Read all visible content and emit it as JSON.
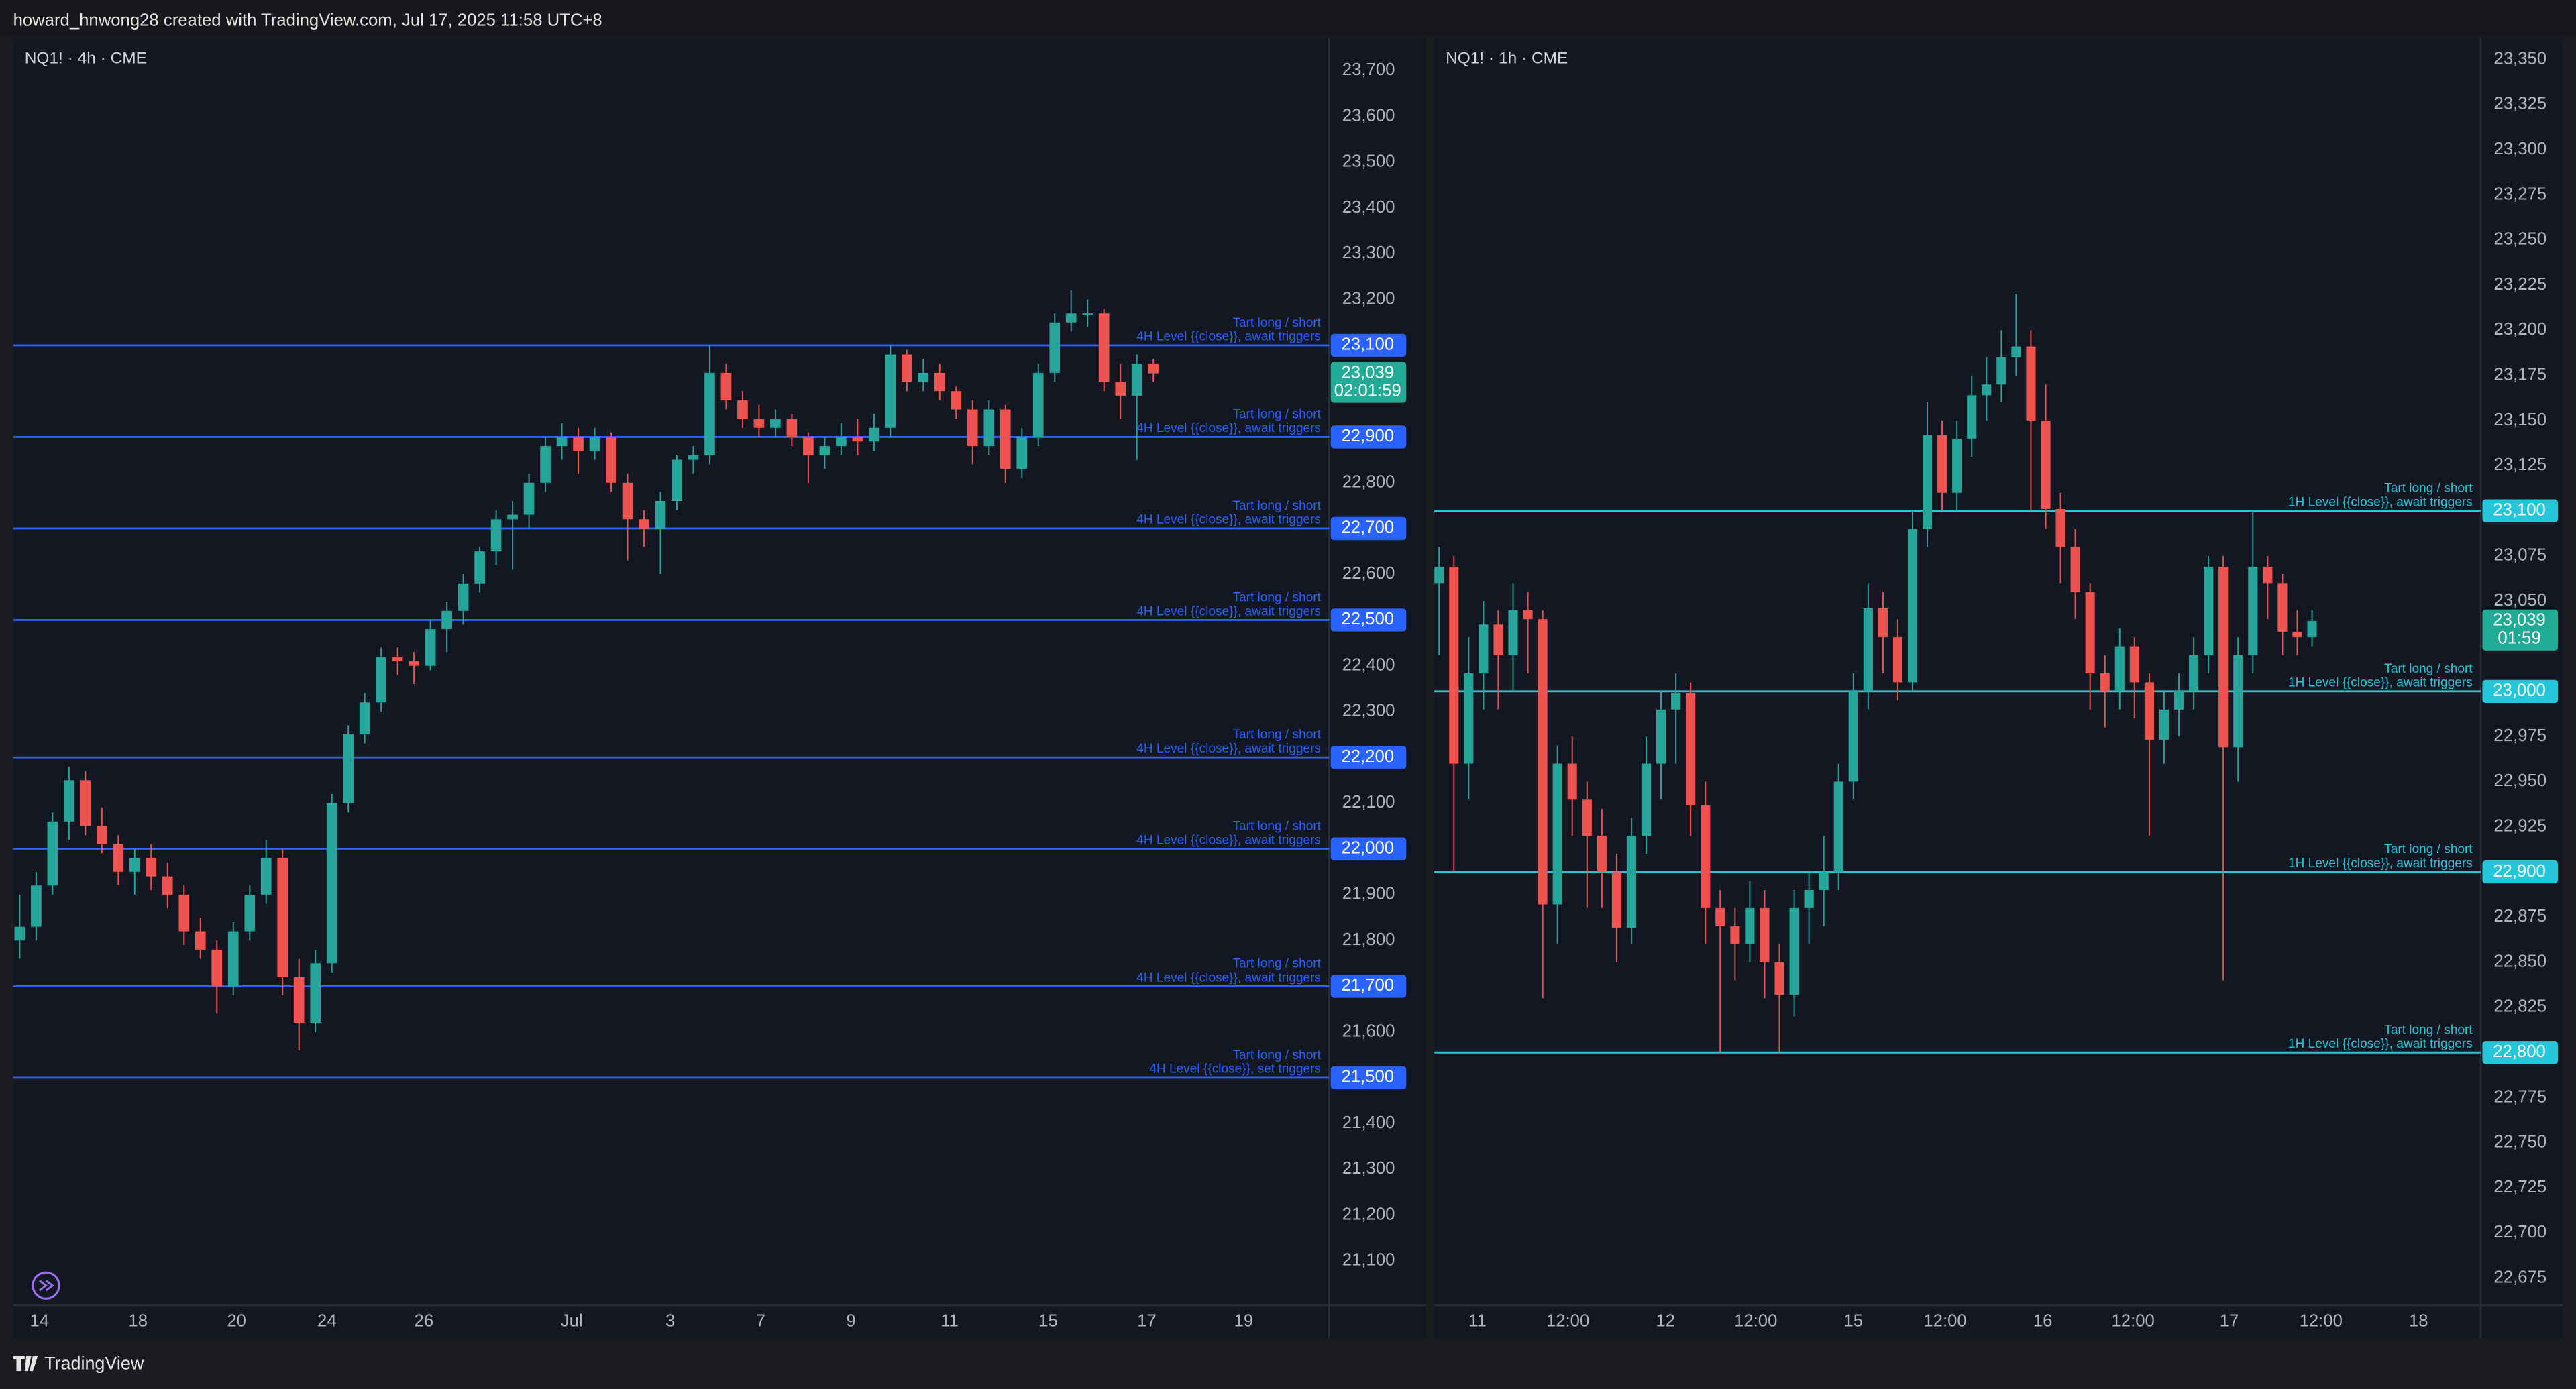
{
  "header": {
    "text": "howard_hnwong28 created with TradingView.com, Jul 17, 2025 11:58 UTC+8"
  },
  "footer": {
    "brand": "TradingView"
  },
  "chart_data": [
    {
      "type": "candlestick",
      "title": "NQ1! · 4h · CME",
      "up_color": "#26a69a",
      "down_color": "#ef5350",
      "xlim": [
        -0.4,
        79.7
      ],
      "xticks": [
        {
          "value": 1.2,
          "label": "14"
        },
        {
          "value": 7.2,
          "label": "18"
        },
        {
          "value": 13.2,
          "label": "20"
        },
        {
          "value": 18.7,
          "label": "24"
        },
        {
          "value": 24.6,
          "label": "26"
        },
        {
          "value": 33.6,
          "label": "Jul"
        },
        {
          "value": 39.6,
          "label": "3"
        },
        {
          "value": 45.1,
          "label": "7"
        },
        {
          "value": 50.6,
          "label": "9"
        },
        {
          "value": 56.6,
          "label": "11"
        },
        {
          "value": 62.6,
          "label": "15"
        },
        {
          "value": 68.6,
          "label": "17"
        },
        {
          "value": 74.5,
          "label": "19"
        }
      ],
      "ylim": [
        21003,
        23772
      ],
      "yticks": [
        {
          "value": 23700,
          "label": "23,700"
        },
        {
          "value": 23600,
          "label": "23,600"
        },
        {
          "value": 23500,
          "label": "23,500"
        },
        {
          "value": 23400,
          "label": "23,400"
        },
        {
          "value": 23300,
          "label": "23,300"
        },
        {
          "value": 23200,
          "label": "23,200"
        },
        {
          "value": 22800,
          "label": "22,800"
        },
        {
          "value": 22600,
          "label": "22,600"
        },
        {
          "value": 22400,
          "label": "22,400"
        },
        {
          "value": 22300,
          "label": "22,300"
        },
        {
          "value": 22100,
          "label": "22,100"
        },
        {
          "value": 21900,
          "label": "21,900"
        },
        {
          "value": 21800,
          "label": "21,800"
        },
        {
          "value": 21600,
          "label": "21,600"
        },
        {
          "value": 21400,
          "label": "21,400"
        },
        {
          "value": 21300,
          "label": "21,300"
        },
        {
          "value": 21200,
          "label": "21,200"
        },
        {
          "value": 21100,
          "label": "21,100"
        }
      ],
      "level_color": "#2962ff",
      "levels": [
        {
          "value": 23100,
          "label": "23,100",
          "text": [
            "Tart long / short",
            "4H Level {{close}}, await triggers"
          ]
        },
        {
          "value": 22900,
          "label": "22,900",
          "text": [
            "Tart long / short",
            "4H Level {{close}}, await triggers"
          ]
        },
        {
          "value": 22700,
          "label": "22,700",
          "text": [
            "Tart long / short",
            "4H Level {{close}}, await triggers"
          ]
        },
        {
          "value": 22500,
          "label": "22,500",
          "text": [
            "Tart long / short",
            "4H Level {{close}}, await triggers"
          ]
        },
        {
          "value": 22200,
          "label": "22,200",
          "text": [
            "Tart long / short",
            "4H Level {{close}}, await triggers"
          ]
        },
        {
          "value": 22000,
          "label": "22,000",
          "text": [
            "Tart long / short",
            "4H Level {{close}}, await triggers"
          ]
        },
        {
          "value": 21700,
          "label": "21,700",
          "text": [
            "Tart long / short",
            "4H Level {{close}}, await triggers"
          ]
        },
        {
          "value": 21500,
          "label": "21,500",
          "text": [
            "Tart long / short",
            "4H Level {{close}}, set triggers"
          ]
        }
      ],
      "last_price": {
        "value": 23039,
        "label": "23,039",
        "countdown": "02:01:59",
        "color": "#22ab94"
      },
      "ohlc": [
        [
          21800,
          21900,
          21760,
          21830
        ],
        [
          21830,
          21950,
          21800,
          21920
        ],
        [
          21920,
          22080,
          21900,
          22060
        ],
        [
          22060,
          22180,
          22020,
          22150
        ],
        [
          22150,
          22170,
          22030,
          22050
        ],
        [
          22050,
          22090,
          21990,
          22010
        ],
        [
          22010,
          22030,
          21920,
          21950
        ],
        [
          21950,
          22000,
          21900,
          21980
        ],
        [
          21980,
          22010,
          21910,
          21940
        ],
        [
          21940,
          21970,
          21870,
          21900
        ],
        [
          21900,
          21920,
          21790,
          21820
        ],
        [
          21820,
          21850,
          21760,
          21780
        ],
        [
          21780,
          21800,
          21640,
          21700
        ],
        [
          21700,
          21840,
          21680,
          21820
        ],
        [
          21820,
          21920,
          21800,
          21900
        ],
        [
          21900,
          22020,
          21880,
          21980
        ],
        [
          21980,
          22000,
          21680,
          21720
        ],
        [
          21720,
          21760,
          21560,
          21620
        ],
        [
          21620,
          21780,
          21600,
          21750
        ],
        [
          21750,
          22120,
          21730,
          22100
        ],
        [
          22100,
          22270,
          22080,
          22250
        ],
        [
          22250,
          22340,
          22230,
          22320
        ],
        [
          22320,
          22440,
          22300,
          22420
        ],
        [
          22420,
          22440,
          22380,
          22410
        ],
        [
          22410,
          22430,
          22360,
          22400
        ],
        [
          22400,
          22500,
          22390,
          22480
        ],
        [
          22480,
          22540,
          22430,
          22520
        ],
        [
          22520,
          22600,
          22490,
          22580
        ],
        [
          22580,
          22660,
          22560,
          22650
        ],
        [
          22650,
          22740,
          22620,
          22720
        ],
        [
          22720,
          22760,
          22610,
          22730
        ],
        [
          22730,
          22820,
          22700,
          22800
        ],
        [
          22800,
          22900,
          22780,
          22880
        ],
        [
          22880,
          22930,
          22850,
          22900
        ],
        [
          22900,
          22920,
          22820,
          22870
        ],
        [
          22870,
          22920,
          22850,
          22900
        ],
        [
          22900,
          22910,
          22780,
          22800
        ],
        [
          22800,
          22820,
          22630,
          22720
        ],
        [
          22720,
          22740,
          22660,
          22700
        ],
        [
          22700,
          22780,
          22600,
          22760
        ],
        [
          22760,
          22860,
          22740,
          22850
        ],
        [
          22850,
          22880,
          22820,
          22860
        ],
        [
          22860,
          23100,
          22840,
          23040
        ],
        [
          23040,
          23060,
          22960,
          22980
        ],
        [
          22980,
          23000,
          22920,
          22940
        ],
        [
          22940,
          22970,
          22900,
          22920
        ],
        [
          22920,
          22960,
          22900,
          22940
        ],
        [
          22940,
          22950,
          22880,
          22900
        ],
        [
          22900,
          22910,
          22800,
          22860
        ],
        [
          22860,
          22900,
          22830,
          22880
        ],
        [
          22880,
          22930,
          22860,
          22900
        ],
        [
          22900,
          22940,
          22860,
          22890
        ],
        [
          22890,
          22950,
          22870,
          22920
        ],
        [
          22920,
          23100,
          22900,
          23080
        ],
        [
          23080,
          23090,
          23000,
          23020
        ],
        [
          23020,
          23070,
          23000,
          23040
        ],
        [
          23040,
          23060,
          22980,
          23000
        ],
        [
          23000,
          23010,
          22940,
          22960
        ],
        [
          22960,
          22980,
          22840,
          22880
        ],
        [
          22880,
          22980,
          22860,
          22960
        ],
        [
          22960,
          22970,
          22800,
          22830
        ],
        [
          22830,
          22920,
          22810,
          22900
        ],
        [
          22900,
          23060,
          22880,
          23040
        ],
        [
          23040,
          23170,
          23020,
          23150
        ],
        [
          23150,
          23220,
          23130,
          23170
        ],
        [
          23170,
          23200,
          23140,
          23170
        ],
        [
          23170,
          23180,
          23000,
          23020
        ],
        [
          23020,
          23060,
          22940,
          22990
        ],
        [
          22990,
          23080,
          22850,
          23060
        ],
        [
          23060,
          23070,
          23020,
          23039
        ]
      ]
    },
    {
      "type": "candlestick",
      "title": "NQ1! · 1h · CME",
      "up_color": "#26a69a",
      "down_color": "#ef5350",
      "xlim": [
        -0.33,
        70.4
      ],
      "xticks": [
        {
          "value": 2.6,
          "label": "11"
        },
        {
          "value": 8.7,
          "label": "12:00"
        },
        {
          "value": 15.3,
          "label": "12"
        },
        {
          "value": 21.4,
          "label": "12:00"
        },
        {
          "value": 28,
          "label": "15"
        },
        {
          "value": 34.2,
          "label": "12:00"
        },
        {
          "value": 40.8,
          "label": "16"
        },
        {
          "value": 46.9,
          "label": "12:00"
        },
        {
          "value": 53.4,
          "label": "17"
        },
        {
          "value": 59.6,
          "label": "12:00"
        },
        {
          "value": 66.2,
          "label": "18"
        }
      ],
      "ylim": [
        22660,
        23362
      ],
      "yticks": [
        {
          "value": 23350,
          "label": "23,350"
        },
        {
          "value": 23325,
          "label": "23,325"
        },
        {
          "value": 23300,
          "label": "23,300"
        },
        {
          "value": 23275,
          "label": "23,275"
        },
        {
          "value": 23250,
          "label": "23,250"
        },
        {
          "value": 23225,
          "label": "23,225"
        },
        {
          "value": 23200,
          "label": "23,200"
        },
        {
          "value": 23175,
          "label": "23,175"
        },
        {
          "value": 23150,
          "label": "23,150"
        },
        {
          "value": 23125,
          "label": "23,125"
        },
        {
          "value": 23075,
          "label": "23,075"
        },
        {
          "value": 23050,
          "label": "23,050"
        },
        {
          "value": 22975,
          "label": "22,975"
        },
        {
          "value": 22950,
          "label": "22,950"
        },
        {
          "value": 22925,
          "label": "22,925"
        },
        {
          "value": 22875,
          "label": "22,875"
        },
        {
          "value": 22850,
          "label": "22,850"
        },
        {
          "value": 22825,
          "label": "22,825"
        },
        {
          "value": 22775,
          "label": "22,775"
        },
        {
          "value": 22750,
          "label": "22,750"
        },
        {
          "value": 22725,
          "label": "22,725"
        },
        {
          "value": 22700,
          "label": "22,700"
        },
        {
          "value": 22675,
          "label": "22,675"
        }
      ],
      "level_color": "#26c6da",
      "levels": [
        {
          "value": 23100,
          "label": "23,100",
          "text": [
            "Tart long / short",
            "1H Level {{close}}, await triggers"
          ]
        },
        {
          "value": 23000,
          "label": "23,000",
          "text": [
            "Tart long / short",
            "1H Level {{close}}, await triggers"
          ]
        },
        {
          "value": 22900,
          "label": "22,900",
          "text": [
            "Tart long / short",
            "1H Level {{close}}, await triggers"
          ]
        },
        {
          "value": 22800,
          "label": "22,800",
          "text": [
            "Tart long / short",
            "1H Level {{close}}, await triggers"
          ]
        }
      ],
      "last_price": {
        "value": 23039,
        "label": "23,039",
        "countdown": "01:59",
        "color": "#22ab94"
      },
      "ohlc": [
        [
          23060,
          23080,
          23020,
          23069
        ],
        [
          23069,
          23075,
          22900,
          22960
        ],
        [
          22960,
          23030,
          22940,
          23010
        ],
        [
          23010,
          23050,
          22990,
          23037
        ],
        [
          23037,
          23045,
          22990,
          23020
        ],
        [
          23020,
          23060,
          23000,
          23045
        ],
        [
          23045,
          23055,
          23010,
          23040
        ],
        [
          23040,
          23045,
          22830,
          22882
        ],
        [
          22882,
          22970,
          22860,
          22960
        ],
        [
          22960,
          22975,
          22920,
          22940
        ],
        [
          22940,
          22950,
          22880,
          22920
        ],
        [
          22920,
          22935,
          22880,
          22900
        ],
        [
          22900,
          22910,
          22850,
          22869
        ],
        [
          22869,
          22930,
          22860,
          22920
        ],
        [
          22920,
          22975,
          22910,
          22960
        ],
        [
          22960,
          23000,
          22940,
          22990
        ],
        [
          22990,
          23010,
          22960,
          22999
        ],
        [
          22999,
          23005,
          22920,
          22937
        ],
        [
          22937,
          22950,
          22860,
          22880
        ],
        [
          22880,
          22890,
          22800,
          22870
        ],
        [
          22870,
          22880,
          22840,
          22860
        ],
        [
          22860,
          22895,
          22850,
          22880
        ],
        [
          22880,
          22890,
          22830,
          22850
        ],
        [
          22850,
          22860,
          22800,
          22832
        ],
        [
          22832,
          22890,
          22820,
          22880
        ],
        [
          22880,
          22900,
          22860,
          22890
        ],
        [
          22890,
          22920,
          22870,
          22900
        ],
        [
          22900,
          22960,
          22890,
          22950
        ],
        [
          22950,
          23010,
          22940,
          23000
        ],
        [
          23000,
          23060,
          22990,
          23046
        ],
        [
          23046,
          23055,
          23010,
          23030
        ],
        [
          23030,
          23040,
          22995,
          23005
        ],
        [
          23005,
          23100,
          23000,
          23090
        ],
        [
          23090,
          23160,
          23080,
          23142
        ],
        [
          23142,
          23150,
          23100,
          23110
        ],
        [
          23110,
          23150,
          23100,
          23140
        ],
        [
          23140,
          23175,
          23130,
          23164
        ],
        [
          23164,
          23185,
          23150,
          23170
        ],
        [
          23170,
          23200,
          23160,
          23185
        ],
        [
          23185,
          23220,
          23175,
          23191
        ],
        [
          23191,
          23200,
          23100,
          23150
        ],
        [
          23150,
          23170,
          23090,
          23101
        ],
        [
          23101,
          23110,
          23060,
          23080
        ],
        [
          23080,
          23090,
          23040,
          23055
        ],
        [
          23055,
          23060,
          22990,
          23010
        ],
        [
          23010,
          23020,
          22980,
          23000
        ],
        [
          23000,
          23035,
          22990,
          23025
        ],
        [
          23025,
          23030,
          22985,
          23005
        ],
        [
          23005,
          23010,
          22920,
          22973
        ],
        [
          22973,
          23000,
          22960,
          22990
        ],
        [
          22990,
          23010,
          22975,
          23000
        ],
        [
          23000,
          23030,
          22990,
          23020
        ],
        [
          23020,
          23075,
          23010,
          23069
        ],
        [
          23069,
          23075,
          22840,
          22969
        ],
        [
          22969,
          23030,
          22950,
          23020
        ],
        [
          23020,
          23100,
          23010,
          23069
        ],
        [
          23069,
          23075,
          23040,
          23060
        ],
        [
          23060,
          23065,
          23020,
          23033
        ],
        [
          23033,
          23045,
          23020,
          23030
        ],
        [
          23030,
          23045,
          23025,
          23039
        ]
      ]
    }
  ]
}
